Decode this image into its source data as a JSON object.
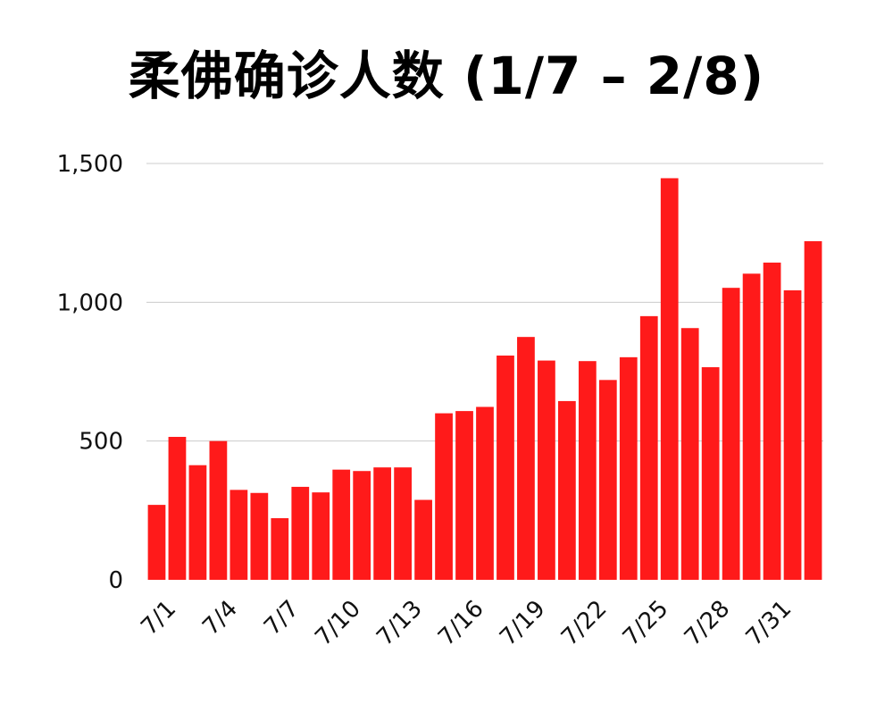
{
  "chart_data": {
    "type": "bar",
    "title": "柔佛确诊人数 (1/7 – 2/8)",
    "xlabel": "",
    "ylabel": "",
    "ylim": [
      0,
      1500
    ],
    "y_ticks": [
      0,
      500,
      1000,
      1500
    ],
    "y_tick_labels": [
      "0",
      "500",
      "1,000",
      "1,500"
    ],
    "grid": true,
    "bar_color": "#ff1a1a",
    "categories": [
      "7/1",
      "7/2",
      "7/3",
      "7/4",
      "7/5",
      "7/6",
      "7/7",
      "7/8",
      "7/9",
      "7/10",
      "7/11",
      "7/12",
      "7/13",
      "7/14",
      "7/15",
      "7/16",
      "7/17",
      "7/18",
      "7/19",
      "7/20",
      "7/21",
      "7/22",
      "7/23",
      "7/24",
      "7/25",
      "7/26",
      "7/27",
      "7/28",
      "7/29",
      "7/30",
      "7/31",
      "8/1",
      "8/2"
    ],
    "x_tick_labels": [
      "7/1",
      "",
      "",
      "7/4",
      "",
      "",
      "7/7",
      "",
      "",
      "7/10",
      "",
      "",
      "7/13",
      "",
      "",
      "7/16",
      "",
      "",
      "7/19",
      "",
      "",
      "7/22",
      "",
      "",
      "7/25",
      "",
      "",
      "7/28",
      "",
      "",
      "7/31",
      "",
      ""
    ],
    "values": [
      270,
      515,
      413,
      500,
      324,
      313,
      222,
      335,
      315,
      397,
      392,
      405,
      405,
      288,
      600,
      608,
      623,
      808,
      875,
      790,
      644,
      788,
      720,
      802,
      950,
      1447,
      907,
      766,
      1052,
      1103,
      1143,
      1043,
      1220
    ]
  }
}
